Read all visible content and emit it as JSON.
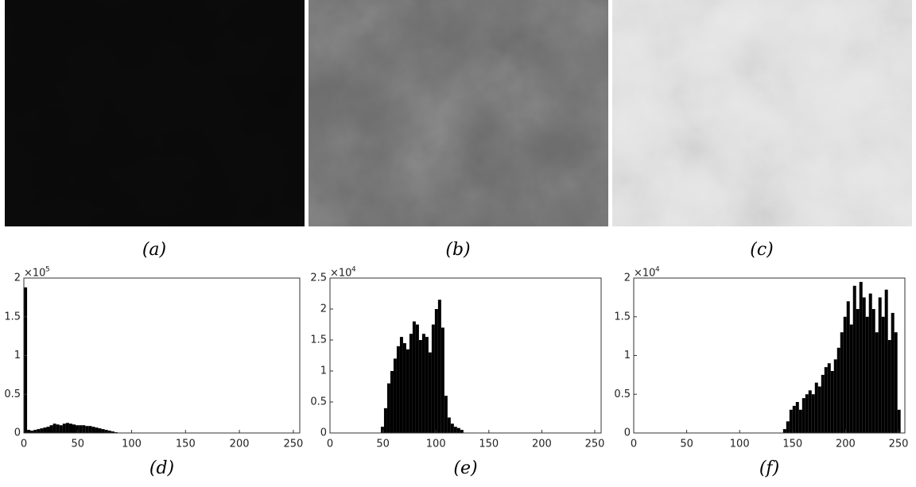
{
  "images": [
    {
      "caption": "(a)"
    },
    {
      "caption": "(b)"
    },
    {
      "caption": "(c)"
    }
  ],
  "chart_data": [
    {
      "type": "bar",
      "caption": "(d)",
      "y_offset_text": "×10",
      "y_offset_exponent": "5",
      "color": "#000000",
      "x": [
        0,
        3,
        6,
        9,
        12,
        15,
        18,
        21,
        24,
        27,
        30,
        33,
        36,
        39,
        42,
        45,
        48,
        51,
        54,
        57,
        60,
        63,
        66,
        69,
        72,
        75,
        78,
        81,
        84
      ],
      "values": [
        1.88,
        0.04,
        0.03,
        0.04,
        0.05,
        0.06,
        0.07,
        0.08,
        0.1,
        0.12,
        0.11,
        0.1,
        0.12,
        0.13,
        0.12,
        0.11,
        0.1,
        0.1,
        0.1,
        0.09,
        0.09,
        0.08,
        0.07,
        0.06,
        0.05,
        0.04,
        0.03,
        0.02,
        0.01
      ],
      "xlim": [
        0,
        256
      ],
      "xticks": [
        0,
        50,
        100,
        150,
        200,
        250
      ],
      "ylim": [
        0,
        2
      ],
      "yticks": [
        0,
        0.5,
        1,
        1.5,
        2
      ]
    },
    {
      "type": "bar",
      "caption": "(e)",
      "y_offset_text": "×10",
      "y_offset_exponent": "4",
      "color": "#000000",
      "x": [
        48,
        51,
        54,
        57,
        60,
        63,
        66,
        69,
        72,
        75,
        78,
        81,
        84,
        87,
        90,
        93,
        96,
        99,
        102,
        105,
        108,
        111,
        114,
        117,
        120,
        123
      ],
      "values": [
        0.1,
        0.4,
        0.8,
        1.0,
        1.2,
        1.4,
        1.55,
        1.45,
        1.35,
        1.6,
        1.8,
        1.75,
        1.5,
        1.6,
        1.55,
        1.3,
        1.75,
        2.0,
        2.15,
        1.7,
        0.6,
        0.25,
        0.15,
        0.1,
        0.08,
        0.05
      ],
      "xlim": [
        0,
        256
      ],
      "xticks": [
        0,
        50,
        100,
        150,
        200,
        250
      ],
      "ylim": [
        0,
        2.5
      ],
      "yticks": [
        0,
        0.5,
        1,
        1.5,
        2,
        2.5
      ]
    },
    {
      "type": "bar",
      "caption": "(f)",
      "y_offset_text": "×10",
      "y_offset_exponent": "4",
      "color": "#000000",
      "x": [
        141,
        144,
        147,
        150,
        153,
        156,
        159,
        162,
        165,
        168,
        171,
        174,
        177,
        180,
        183,
        186,
        189,
        192,
        195,
        198,
        201,
        204,
        207,
        210,
        213,
        216,
        219,
        222,
        225,
        228,
        231,
        234,
        237,
        240,
        243,
        246,
        249
      ],
      "values": [
        0.05,
        0.15,
        0.3,
        0.35,
        0.4,
        0.3,
        0.45,
        0.5,
        0.55,
        0.5,
        0.65,
        0.6,
        0.75,
        0.85,
        0.9,
        0.8,
        0.95,
        1.1,
        1.3,
        1.5,
        1.7,
        1.4,
        1.9,
        1.6,
        1.95,
        1.75,
        1.5,
        1.8,
        1.6,
        1.3,
        1.75,
        1.5,
        1.85,
        1.2,
        1.55,
        1.3,
        0.3
      ],
      "xlim": [
        0,
        256
      ],
      "xticks": [
        0,
        50,
        100,
        150,
        200,
        250
      ],
      "ylim": [
        0,
        2
      ],
      "yticks": [
        0,
        0.5,
        1,
        1.5,
        2
      ]
    }
  ]
}
